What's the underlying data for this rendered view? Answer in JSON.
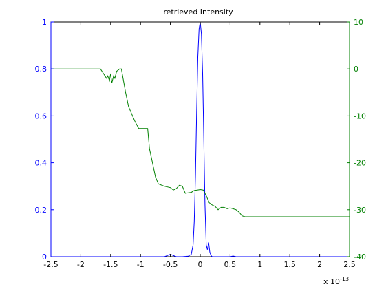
{
  "chart_data": {
    "type": "line",
    "title": "retrieved Intensity",
    "xlabel": "",
    "ylabel": "",
    "x_exponent_label": "x 10",
    "x_exponent": "-13",
    "xlim": [
      -2.5,
      2.5
    ],
    "x_ticks": [
      -2.5,
      -2,
      -1.5,
      -1,
      -0.5,
      0,
      0.5,
      1,
      1.5,
      2,
      2.5
    ],
    "x_tick_labels": [
      "-2.5",
      "-2",
      "-1.5",
      "-1",
      "-0.5",
      "0",
      "0.5",
      "1",
      "1.5",
      "2",
      "2.5"
    ],
    "y_left": {
      "lim": [
        0,
        1
      ],
      "ticks": [
        0,
        0.2,
        0.4,
        0.6,
        0.8,
        1
      ],
      "tick_labels": [
        "0",
        "0.2",
        "0.4",
        "0.6",
        "0.8",
        "1"
      ],
      "color": "#0000ff"
    },
    "y_right": {
      "lim": [
        -40,
        10
      ],
      "ticks": [
        -40,
        -30,
        -20,
        -10,
        0,
        10
      ],
      "tick_labels": [
        "-40",
        "-30",
        "-20",
        "-10",
        "0",
        "10"
      ],
      "color": "#008000"
    },
    "grid": false,
    "series": [
      {
        "axis": "left",
        "color": "#0000ff",
        "x": [
          -2.5,
          -1.0,
          -0.6,
          -0.55,
          -0.5,
          -0.45,
          -0.4,
          -0.3,
          -0.2,
          -0.15,
          -0.12,
          -0.1,
          -0.08,
          -0.06,
          -0.04,
          -0.02,
          0.0,
          0.02,
          0.04,
          0.06,
          0.08,
          0.1,
          0.12,
          0.14,
          0.16,
          0.18,
          0.2,
          0.3,
          0.5,
          0.55,
          0.6,
          1.0,
          2.5
        ],
        "y": [
          0.0,
          0.0,
          0.0,
          0.005,
          0.01,
          0.005,
          0.0,
          0.0,
          0.002,
          0.01,
          0.05,
          0.15,
          0.35,
          0.62,
          0.85,
          0.97,
          1.0,
          0.95,
          0.78,
          0.5,
          0.22,
          0.05,
          0.03,
          0.06,
          0.02,
          0.005,
          0.0,
          0.0,
          0.0,
          0.003,
          0.0,
          0.0,
          0.0
        ]
      },
      {
        "axis": "right",
        "color": "#008000",
        "x": [
          -2.5,
          -1.67,
          -1.62,
          -1.57,
          -1.55,
          -1.52,
          -1.5,
          -1.48,
          -1.45,
          -1.43,
          -1.4,
          -1.37,
          -1.35,
          -1.32,
          -1.25,
          -1.2,
          -1.1,
          -1.03,
          -1.0,
          -0.95,
          -0.88,
          -0.85,
          -0.8,
          -0.75,
          -0.7,
          -0.6,
          -0.5,
          -0.45,
          -0.4,
          -0.35,
          -0.3,
          -0.25,
          -0.2,
          -0.15,
          -0.1,
          -0.05,
          0.0,
          0.05,
          0.1,
          0.15,
          0.2,
          0.25,
          0.3,
          0.35,
          0.4,
          0.45,
          0.5,
          0.55,
          0.6,
          0.65,
          0.7,
          0.75,
          2.5
        ],
        "y": [
          0.0,
          0.0,
          -1.0,
          -2.0,
          -1.5,
          -2.5,
          -1.0,
          -3.0,
          -1.5,
          -2.0,
          -0.5,
          -0.2,
          0.0,
          0.0,
          -5.0,
          -8.0,
          -11.0,
          -12.7,
          -12.7,
          -12.7,
          -12.7,
          -17.0,
          -20.0,
          -23.0,
          -24.5,
          -25.0,
          -25.3,
          -25.8,
          -25.5,
          -24.8,
          -25.0,
          -26.5,
          -26.4,
          -26.3,
          -25.9,
          -25.8,
          -25.7,
          -25.8,
          -27.0,
          -28.5,
          -29.0,
          -29.3,
          -30.0,
          -29.5,
          -29.5,
          -29.8,
          -29.6,
          -29.8,
          -30.0,
          -30.5,
          -31.3,
          -31.5,
          -31.5
        ]
      }
    ]
  }
}
